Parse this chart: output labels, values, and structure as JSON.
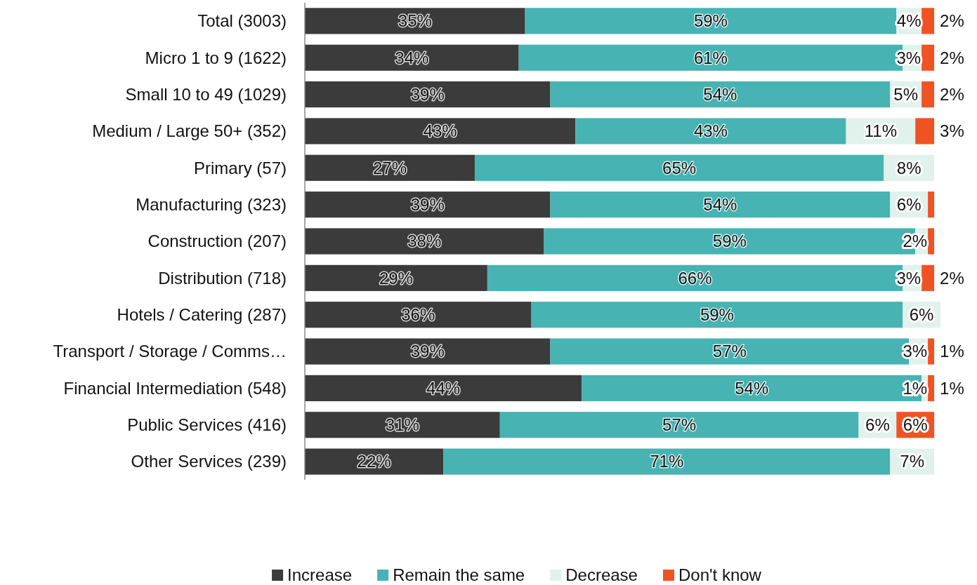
{
  "chart_data": {
    "type": "bar",
    "orientation": "horizontal",
    "stacked": true,
    "legend": "bottom",
    "categories": [
      "Total (3003)",
      "Micro 1 to 9 (1622)",
      "Small 10 to 49 (1029)",
      "Medium / Large 50+ (352)",
      "Primary  (57)",
      "Manufacturing (323)",
      "Construction (207)",
      "Distribution  (718)",
      "Hotels / Catering  (287)",
      "Transport / Storage / Comms…",
      "Financial Intermediation  (548)",
      "Public Services  (416)",
      "Other Services  (239)"
    ],
    "series": [
      {
        "name": "Increase",
        "color": "#3b3b3b",
        "values": [
          35,
          34,
          39,
          43,
          27,
          39,
          38,
          29,
          36,
          39,
          44,
          31,
          22
        ],
        "value_labels": [
          "35%",
          "34%",
          "39%",
          "43%",
          "27%",
          "39%",
          "38%",
          "29%",
          "36%",
          "39%",
          "44%",
          "31%",
          "22%"
        ]
      },
      {
        "name": "Remain the same",
        "color": "#47b3b3",
        "values": [
          59,
          61,
          54,
          43,
          65,
          54,
          59,
          66,
          59,
          57,
          54,
          57,
          71
        ],
        "value_labels": [
          "59%",
          "61%",
          "54%",
          "43%",
          "65%",
          "54%",
          "59%",
          "66%",
          "59%",
          "57%",
          "54%",
          "57%",
          "71%"
        ]
      },
      {
        "name": "Decrease",
        "color": "#e1f1eb",
        "values": [
          4,
          3,
          5,
          11,
          8,
          6,
          2,
          3,
          6,
          3,
          1,
          6,
          7
        ],
        "value_labels": [
          "4%",
          "3%",
          "5%",
          "11%",
          "8%",
          "6%",
          "2%",
          "3%",
          "6%",
          "3%",
          "1%",
          "6%",
          "7%"
        ]
      },
      {
        "name": "Don't know",
        "color": "#f05323",
        "values": [
          2,
          2,
          2,
          3,
          0,
          1,
          1,
          2,
          0,
          1,
          1,
          6,
          0
        ],
        "value_labels": [
          "2%",
          "2%",
          "2%",
          "3%",
          null,
          null,
          null,
          "2%",
          null,
          "1%",
          "1%",
          "6%",
          null
        ]
      }
    ]
  }
}
